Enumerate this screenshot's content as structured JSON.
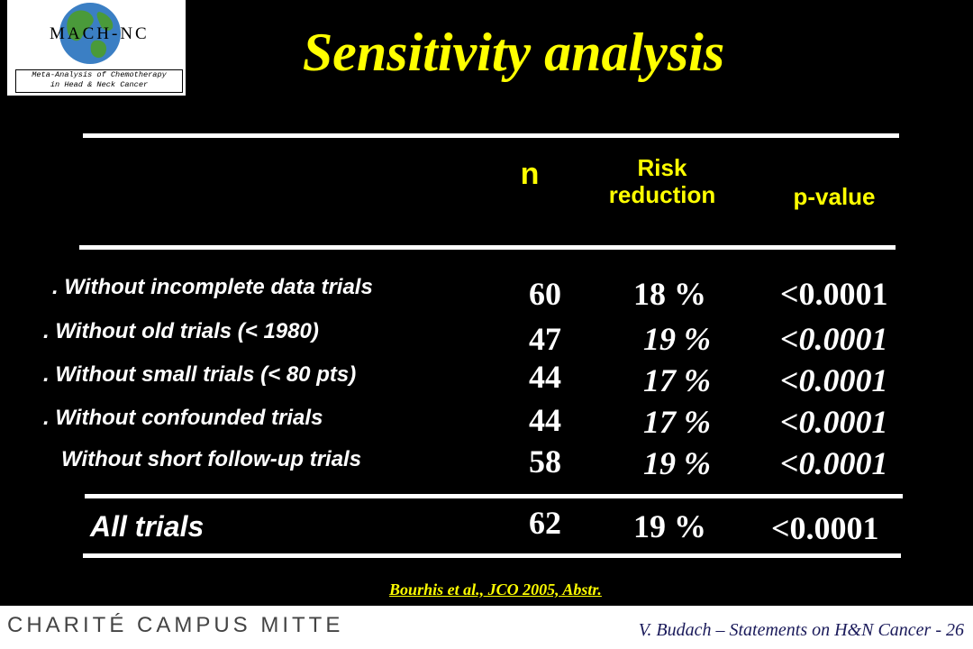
{
  "logo": {
    "word": "MACH-NC",
    "subtitle_line1": "Meta-Analysis of Chemotherapy",
    "subtitle_line2": "in Head & Neck Cancer"
  },
  "title": "Sensitivity analysis",
  "headers": {
    "n": "n",
    "risk_line1": "Risk",
    "risk_line2": "reduction",
    "pvalue": "p-value"
  },
  "rows": [
    {
      "label": ". Without incomplete data trials",
      "n": "60",
      "risk": "18 %",
      "p": "<0.0001",
      "italic": false
    },
    {
      "label": ". Without old trials (< 1980)",
      "n": "47",
      "risk": "19 %",
      "p": "<0.0001",
      "italic": true
    },
    {
      "label": ". Without small trials (< 80 pts)",
      "n": "44",
      "risk": "17 %",
      "p": "<0.0001",
      "italic": true
    },
    {
      "label": ". Without confounded trials",
      "n": "44",
      "risk": "17 %",
      "p": "<0.0001",
      "italic": true
    },
    {
      "label": "Without short follow-up trials",
      "n": "58",
      "risk": "19 %",
      "p": "<0.0001",
      "italic": true
    }
  ],
  "total": {
    "label": "All trials",
    "n": "62",
    "risk": "19 %",
    "p": "<0.0001"
  },
  "citation": "Bourhis et al., JCO 2005, Abstr.",
  "footer": {
    "institution": "CHARITÉ CAMPUS MITTE",
    "note": "V. Budach – Statements on H&N Cancer - 26"
  },
  "colors": {
    "background": "#000000",
    "title": "#ffff00",
    "text": "#ffffff"
  }
}
